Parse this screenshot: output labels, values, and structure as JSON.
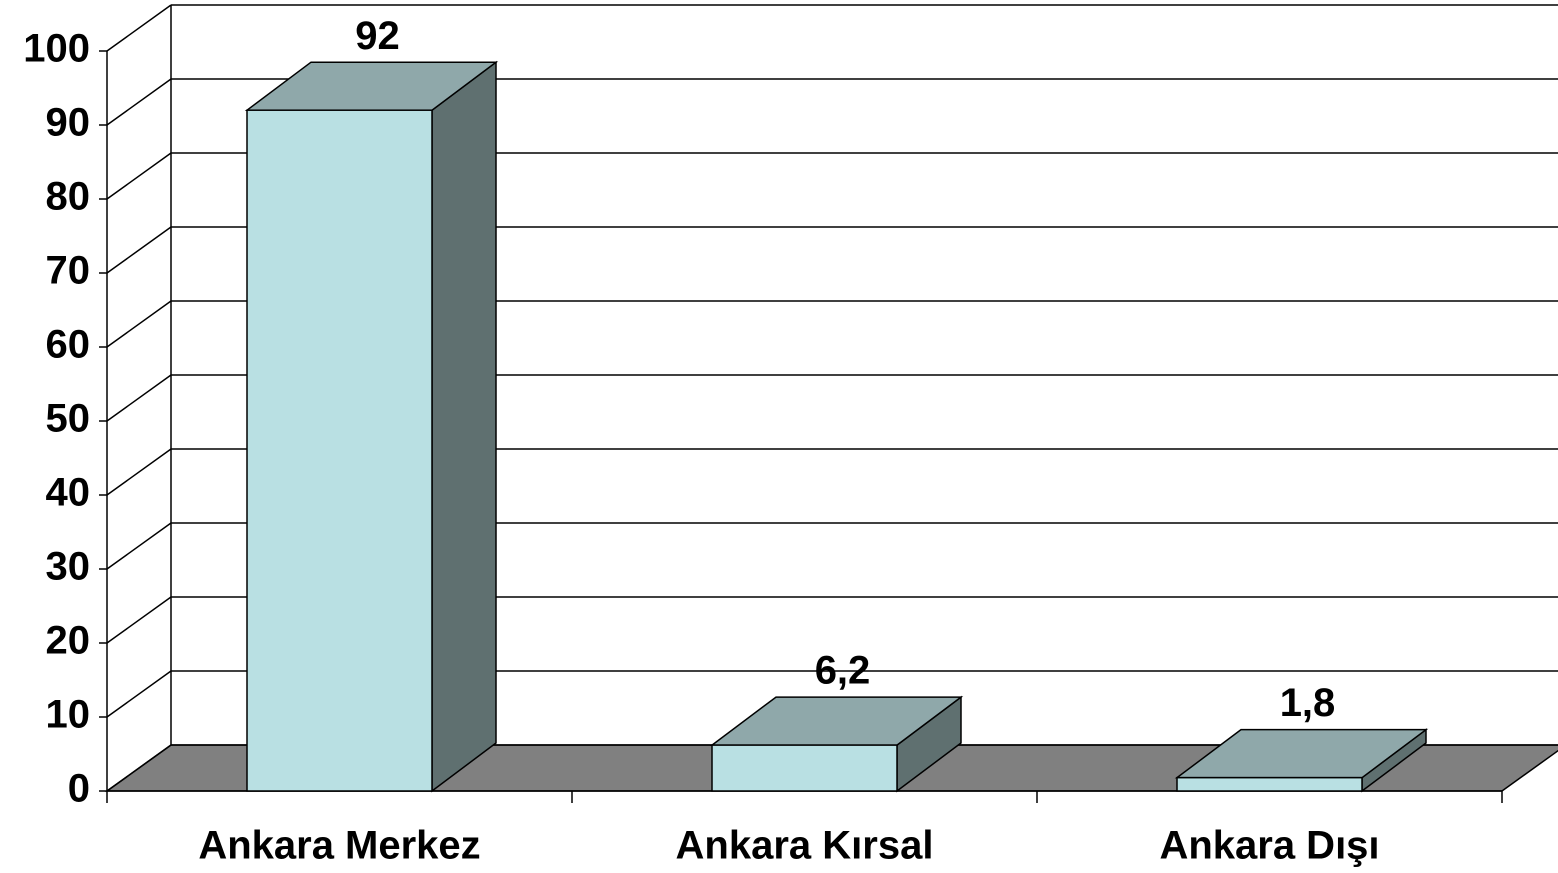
{
  "chart_data": {
    "type": "bar",
    "categories": [
      "Ankara Merkez",
      "Ankara Kırsal",
      "Ankara Dışı"
    ],
    "values": [
      92,
      6.2,
      1.8
    ],
    "value_labels": [
      "92",
      "6,2",
      "1,8"
    ],
    "color": "#b9e0e3",
    "ylim": [
      0,
      100
    ],
    "yticks": [
      0,
      10,
      20,
      30,
      40,
      50,
      60,
      70,
      80,
      90,
      100
    ],
    "grid": true
  }
}
